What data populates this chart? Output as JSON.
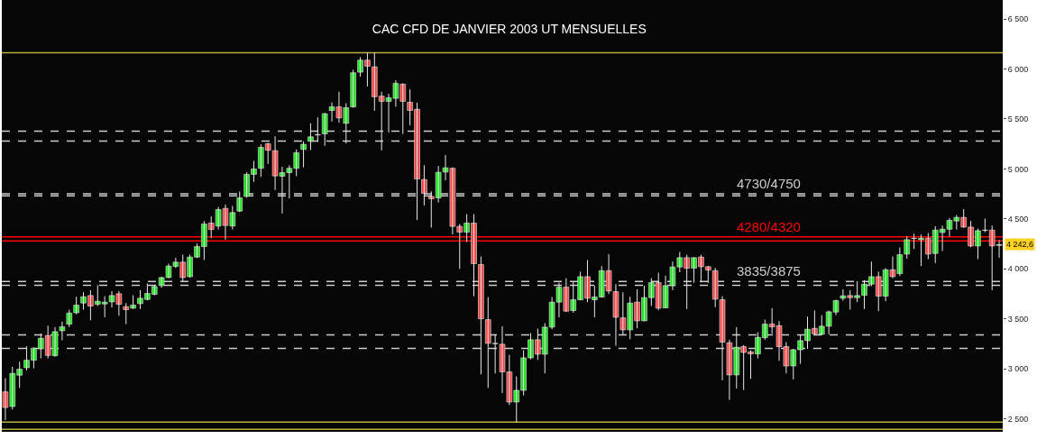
{
  "chart_data": {
    "type": "candlestick",
    "title": "CAC CFD DE JANVIER 2003 UT MENSUELLES",
    "categories": [
      null,
      null,
      null,
      null,
      null,
      null,
      null,
      null,
      null,
      null,
      null,
      null,
      null,
      null,
      null,
      null,
      null,
      null,
      null,
      null,
      null,
      null,
      null,
      null,
      null,
      null,
      null,
      null,
      null,
      null,
      null,
      null,
      null,
      null,
      null,
      null,
      null,
      null,
      null,
      null,
      null,
      null,
      null,
      null,
      null,
      null,
      null,
      null,
      null,
      null,
      null,
      null,
      null,
      null,
      null,
      null,
      null,
      null,
      null,
      null,
      null,
      null,
      null,
      null,
      null,
      null,
      null,
      null,
      null,
      null,
      null,
      null,
      null,
      null,
      null,
      null,
      null,
      null,
      null,
      null,
      null,
      null,
      null,
      null,
      null,
      null,
      null,
      null,
      null,
      null,
      null,
      null,
      null,
      null,
      null,
      null,
      null,
      null,
      null,
      null,
      null,
      null,
      null,
      null,
      null,
      null,
      null,
      null,
      null,
      null,
      null,
      null,
      null,
      null,
      null,
      null,
      null,
      null,
      null,
      null,
      null,
      null,
      null,
      null,
      null,
      null,
      null,
      null,
      null,
      null,
      null,
      null,
      null,
      null,
      null,
      null,
      null,
      null,
      null,
      null,
      null
    ],
    "ohlc": [
      [
        2770,
        2906,
        2487,
        2613
      ],
      [
        2623,
        3020,
        2593,
        2954
      ],
      [
        2936,
        3071,
        2809,
        2996
      ],
      [
        3011,
        3225,
        2984,
        3086
      ],
      [
        3086,
        3215,
        3005,
        3206
      ],
      [
        3200,
        3351,
        3104,
        3306
      ],
      [
        3333,
        3432,
        3104,
        3134
      ],
      [
        3131,
        3417,
        3122,
        3372
      ],
      [
        3381,
        3471,
        3285,
        3420
      ],
      [
        3447,
        3592,
        3417,
        3558
      ],
      [
        3561,
        3721,
        3546,
        3637
      ],
      [
        3658,
        3766,
        3592,
        3721
      ],
      [
        3733,
        3787,
        3486,
        3628
      ],
      [
        3646,
        3838,
        3628,
        3676
      ],
      [
        3649,
        3727,
        3516,
        3667
      ],
      [
        3670,
        3778,
        3613,
        3733
      ],
      [
        3751,
        3778,
        3531,
        3646
      ],
      [
        3622,
        3658,
        3447,
        3592
      ],
      [
        3607,
        3736,
        3598,
        3637
      ],
      [
        3652,
        3787,
        3598,
        3706
      ],
      [
        3694,
        3853,
        3685,
        3754
      ],
      [
        3745,
        3838,
        3736,
        3823
      ],
      [
        3832,
        3922,
        3811,
        3913
      ],
      [
        3913,
        4052,
        3907,
        4028
      ],
      [
        4025,
        4112,
        4010,
        4067
      ],
      [
        4067,
        4142,
        3877,
        3913
      ],
      [
        3922,
        4142,
        3913,
        4118
      ],
      [
        4118,
        4253,
        4109,
        4223
      ],
      [
        4223,
        4479,
        4088,
        4449
      ],
      [
        4458,
        4524,
        4307,
        4394
      ],
      [
        4428,
        4620,
        4394,
        4593
      ],
      [
        4605,
        4644,
        4292,
        4434
      ],
      [
        4428,
        4629,
        4394,
        4563
      ],
      [
        4578,
        4774,
        4569,
        4710
      ],
      [
        4725,
        4966,
        4713,
        4945
      ],
      [
        4945,
        5080,
        4870,
        5000
      ],
      [
        5006,
        5246,
        4921,
        5216
      ],
      [
        5252,
        5261,
        5050,
        5186
      ],
      [
        5183,
        5327,
        4788,
        4930
      ],
      [
        4927,
        5021,
        4554,
        4963
      ],
      [
        4963,
        5036,
        4704,
        5006
      ],
      [
        5006,
        5195,
        4927,
        5162
      ],
      [
        5195,
        5276,
        5015,
        5246
      ],
      [
        5276,
        5456,
        5189,
        5321
      ],
      [
        5340,
        5516,
        5270,
        5344
      ],
      [
        5351,
        5561,
        5231,
        5552
      ],
      [
        5585,
        5666,
        5474,
        5621
      ],
      [
        5621,
        5772,
        5462,
        5510
      ],
      [
        5456,
        5657,
        5255,
        5612
      ],
      [
        5621,
        5992,
        5612,
        5962
      ],
      [
        5968,
        6118,
        5923,
        6088
      ],
      [
        6088,
        6163,
        5825,
        6028
      ],
      [
        6022,
        6163,
        5582,
        5722
      ],
      [
        5728,
        5772,
        5185,
        5676
      ],
      [
        5676,
        5751,
        5365,
        5712
      ],
      [
        5706,
        5887,
        5622,
        5857
      ],
      [
        5848,
        5857,
        5350,
        5676
      ],
      [
        5667,
        5796,
        5435,
        5585
      ],
      [
        5597,
        5661,
        4488,
        4900
      ],
      [
        4894,
        5036,
        4635,
        4756
      ],
      [
        4725,
        4776,
        4413,
        4701
      ],
      [
        4710,
        5030,
        4665,
        4966
      ],
      [
        4969,
        5140,
        4885,
        5011
      ],
      [
        5006,
        5015,
        4345,
        4425
      ],
      [
        4425,
        4449,
        4000,
        4368
      ],
      [
        4368,
        4548,
        4267,
        4458
      ],
      [
        4458,
        4548,
        3727,
        4052
      ],
      [
        4043,
        4124,
        2945,
        3501
      ],
      [
        3492,
        3718,
        2809,
        3255
      ],
      [
        3255,
        3345,
        2954,
        3252
      ],
      [
        3246,
        3426,
        2758,
        2969
      ],
      [
        2969,
        3140,
        2638,
        2668
      ],
      [
        2668,
        2924,
        2464,
        2785
      ],
      [
        2785,
        3185,
        2734,
        3110
      ],
      [
        3110,
        3357,
        3095,
        3291
      ],
      [
        3291,
        3402,
        3089,
        3146
      ],
      [
        3146,
        3456,
        2954,
        3417
      ],
      [
        3417,
        3718,
        3396,
        3667
      ],
      [
        3667,
        3862,
        3514,
        3817
      ],
      [
        3817,
        3907,
        3568,
        3577
      ],
      [
        3583,
        3868,
        3561,
        3691
      ],
      [
        3691,
        3973,
        3685,
        3922
      ],
      [
        3922,
        4088,
        3667,
        3706
      ],
      [
        3691,
        3832,
        3514,
        3718
      ],
      [
        3718,
        4028,
        3712,
        3982
      ],
      [
        3982,
        4148,
        3748,
        3778
      ],
      [
        3772,
        3847,
        3231,
        3516
      ],
      [
        3510,
        3766,
        3336,
        3390
      ],
      [
        3390,
        3721,
        3297,
        3658
      ],
      [
        3667,
        3796,
        3405,
        3480
      ],
      [
        3480,
        3832,
        3477,
        3712
      ],
      [
        3712,
        3907,
        3628,
        3862
      ],
      [
        3862,
        3962,
        3586,
        3607
      ],
      [
        3610,
        3932,
        3610,
        3832
      ],
      [
        3832,
        4073,
        3787,
        4019
      ],
      [
        4019,
        4169,
        3967,
        4112
      ],
      [
        4112,
        4142,
        3598,
        4007
      ],
      [
        4007,
        4115,
        3862,
        4112
      ],
      [
        4118,
        4142,
        3865,
        4022
      ],
      [
        4022,
        4028,
        3859,
        3988
      ],
      [
        3982,
        4010,
        3616,
        3697
      ],
      [
        3691,
        3727,
        2885,
        3267
      ],
      [
        3261,
        3291,
        2689,
        2939
      ],
      [
        2939,
        3417,
        2803,
        3216
      ],
      [
        3222,
        3237,
        2788,
        3164
      ],
      [
        3170,
        3185,
        2900,
        3149
      ],
      [
        3149,
        3366,
        3104,
        3315
      ],
      [
        3312,
        3492,
        3291,
        3447
      ],
      [
        3447,
        3607,
        3351,
        3420
      ],
      [
        3432,
        3477,
        3080,
        3222
      ],
      [
        3222,
        3267,
        2954,
        3029
      ],
      [
        3029,
        3200,
        2894,
        3191
      ],
      [
        3191,
        3342,
        3050,
        3282
      ],
      [
        3282,
        3522,
        3200,
        3396
      ],
      [
        3405,
        3585,
        3345,
        3351
      ],
      [
        3345,
        3537,
        3336,
        3426
      ],
      [
        3426,
        3583,
        3345,
        3570
      ],
      [
        3568,
        3691,
        3537,
        3682
      ],
      [
        3706,
        3796,
        3682,
        3730
      ],
      [
        3733,
        3787,
        3592,
        3712
      ],
      [
        3712,
        3877,
        3667,
        3733
      ],
      [
        3736,
        3886,
        3598,
        3847
      ],
      [
        3847,
        4073,
        3826,
        3922
      ],
      [
        3922,
        3973,
        3577,
        3727
      ],
      [
        3727,
        4007,
        3676,
        3991
      ],
      [
        3991,
        4124,
        3907,
        3922
      ],
      [
        3952,
        4214,
        3928,
        4142
      ],
      [
        4148,
        4328,
        4103,
        4292
      ],
      [
        4304,
        4352,
        4199,
        4305
      ],
      [
        4292,
        4343,
        4028,
        4307
      ],
      [
        4307,
        4358,
        4097,
        4148
      ],
      [
        4154,
        4427,
        4058,
        4388
      ],
      [
        4364,
        4433,
        4178,
        4397
      ],
      [
        4397,
        4509,
        4322,
        4485
      ],
      [
        4479,
        4539,
        4394,
        4515
      ],
      [
        4515,
        4599,
        4412,
        4418
      ],
      [
        4418,
        4479,
        4217,
        4229
      ],
      [
        4229,
        4403,
        4097,
        4382
      ],
      [
        4385,
        4503,
        4367,
        4388
      ],
      [
        4388,
        4433,
        3787,
        4229
      ],
      [
        4235,
        4289,
        4112,
        4242.6
      ]
    ],
    "ylim": [
      2370,
      6690
    ],
    "yticks": [
      {
        "value": 2500,
        "label": "2 500"
      },
      {
        "value": 3000,
        "label": "3 000"
      },
      {
        "value": 3500,
        "label": "3 500"
      },
      {
        "value": 4000,
        "label": "4 000"
      },
      {
        "value": 4500,
        "label": "4 500"
      },
      {
        "value": 5000,
        "label": "5 000"
      },
      {
        "value": 5500,
        "label": "5 500"
      },
      {
        "value": 6000,
        "label": "6 000"
      },
      {
        "value": 6500,
        "label": "6 500"
      }
    ],
    "ref_lines": [
      {
        "axis": "y",
        "value": 6163,
        "color": "#b5b040",
        "line_style": "solid"
      },
      {
        "axis": "y",
        "value": 5378,
        "color": "#cccccc",
        "line_style": "dashed"
      },
      {
        "axis": "y",
        "value": 5279,
        "color": "#cccccc",
        "line_style": "dashed"
      },
      {
        "axis": "y",
        "value": 4750,
        "color": "#cccccc",
        "line_style": "dashed",
        "label": "4730/4750"
      },
      {
        "axis": "y",
        "value": 4730,
        "color": "#cccccc",
        "line_style": "dashed"
      },
      {
        "axis": "y",
        "value": 4320,
        "color": "#ff0000",
        "line_style": "solid",
        "label": "4280/4320"
      },
      {
        "axis": "y",
        "value": 4280,
        "color": "#ff0000",
        "line_style": "solid"
      },
      {
        "axis": "y",
        "value": 3875,
        "color": "#cccccc",
        "line_style": "dashed",
        "label": "3835/3875"
      },
      {
        "axis": "y",
        "value": 3835,
        "color": "#cccccc",
        "line_style": "dashed"
      },
      {
        "axis": "y",
        "value": 3340,
        "color": "#cccccc",
        "line_style": "dashed"
      },
      {
        "axis": "y",
        "value": 3205,
        "color": "#cccccc",
        "line_style": "dashed"
      },
      {
        "axis": "y",
        "value": 2467,
        "color": "#b5b040",
        "line_style": "solid"
      },
      {
        "axis": "y",
        "value": 2395,
        "color": "#b5b040",
        "line_style": "solid"
      }
    ],
    "annotations": [
      {
        "text": "4 242,6",
        "y": 4242.6
      }
    ],
    "colors": [
      "#f04848",
      "#22e022",
      "#22e022",
      "#22e022",
      "#22e022",
      "#22e022",
      "#f04848",
      "#22e022",
      "#22e022",
      "#22e022",
      "#22e022",
      "#22e022",
      "#f04848",
      "#22e022",
      "#22e022",
      "#22e022",
      "#f04848",
      "#f04848",
      "#22e022",
      "#22e022",
      "#22e022",
      "#22e022",
      "#22e022",
      "#22e022",
      "#22e022",
      "#f04848",
      "#22e022",
      "#22e022",
      "#22e022",
      "#f04848",
      "#22e022",
      "#f04848",
      "#22e022",
      "#22e022",
      "#22e022",
      "#22e022",
      "#22e022",
      "#f04848",
      "#f04848",
      "#22e022",
      "#22e022",
      "#22e022",
      "#22e022",
      "#22e022",
      "#e8e8e8",
      "#22e022",
      "#22e022",
      "#f04848",
      "#22e022",
      "#22e022",
      "#22e022",
      "#f04848",
      "#f04848",
      "#f04848",
      "#22e022",
      "#22e022",
      "#f04848",
      "#f04848",
      "#f04848",
      "#f04848",
      "#f04848",
      "#22e022",
      "#22e022",
      "#f04848",
      "#f04848",
      "#22e022",
      "#f04848",
      "#f04848",
      "#f04848",
      "#e8e8e8",
      "#f04848",
      "#f04848",
      "#22e022",
      "#22e022",
      "#22e022",
      "#f04848",
      "#22e022",
      "#22e022",
      "#22e022",
      "#f04848",
      "#22e022",
      "#22e022",
      "#f04848",
      "#22e022",
      "#22e022",
      "#f04848",
      "#f04848",
      "#f04848",
      "#22e022",
      "#f04848",
      "#22e022",
      "#22e022",
      "#f04848",
      "#22e022",
      "#22e022",
      "#22e022",
      "#f04848",
      "#22e022",
      "#f04848",
      "#f04848",
      "#f04848",
      "#f04848",
      "#f04848",
      "#22e022",
      "#f04848",
      "#f04848",
      "#22e022",
      "#22e022",
      "#f04848",
      "#f04848",
      "#f04848",
      "#22e022",
      "#22e022",
      "#22e022",
      "#f04848",
      "#22e022",
      "#22e022",
      "#22e022",
      "#22e022",
      "#f04848",
      "#22e022",
      "#22e022",
      "#22e022",
      "#f04848",
      "#22e022",
      "#f04848",
      "#22e022",
      "#22e022",
      "#e8e8e8",
      "#22e022",
      "#f04848",
      "#22e022",
      "#22e022",
      "#22e022",
      "#22e022",
      "#f04848",
      "#f04848",
      "#22e022",
      "#e8e8e8",
      "#f04848",
      "#e8e8e8"
    ],
    "grid": false,
    "tick_labels": "y"
  }
}
